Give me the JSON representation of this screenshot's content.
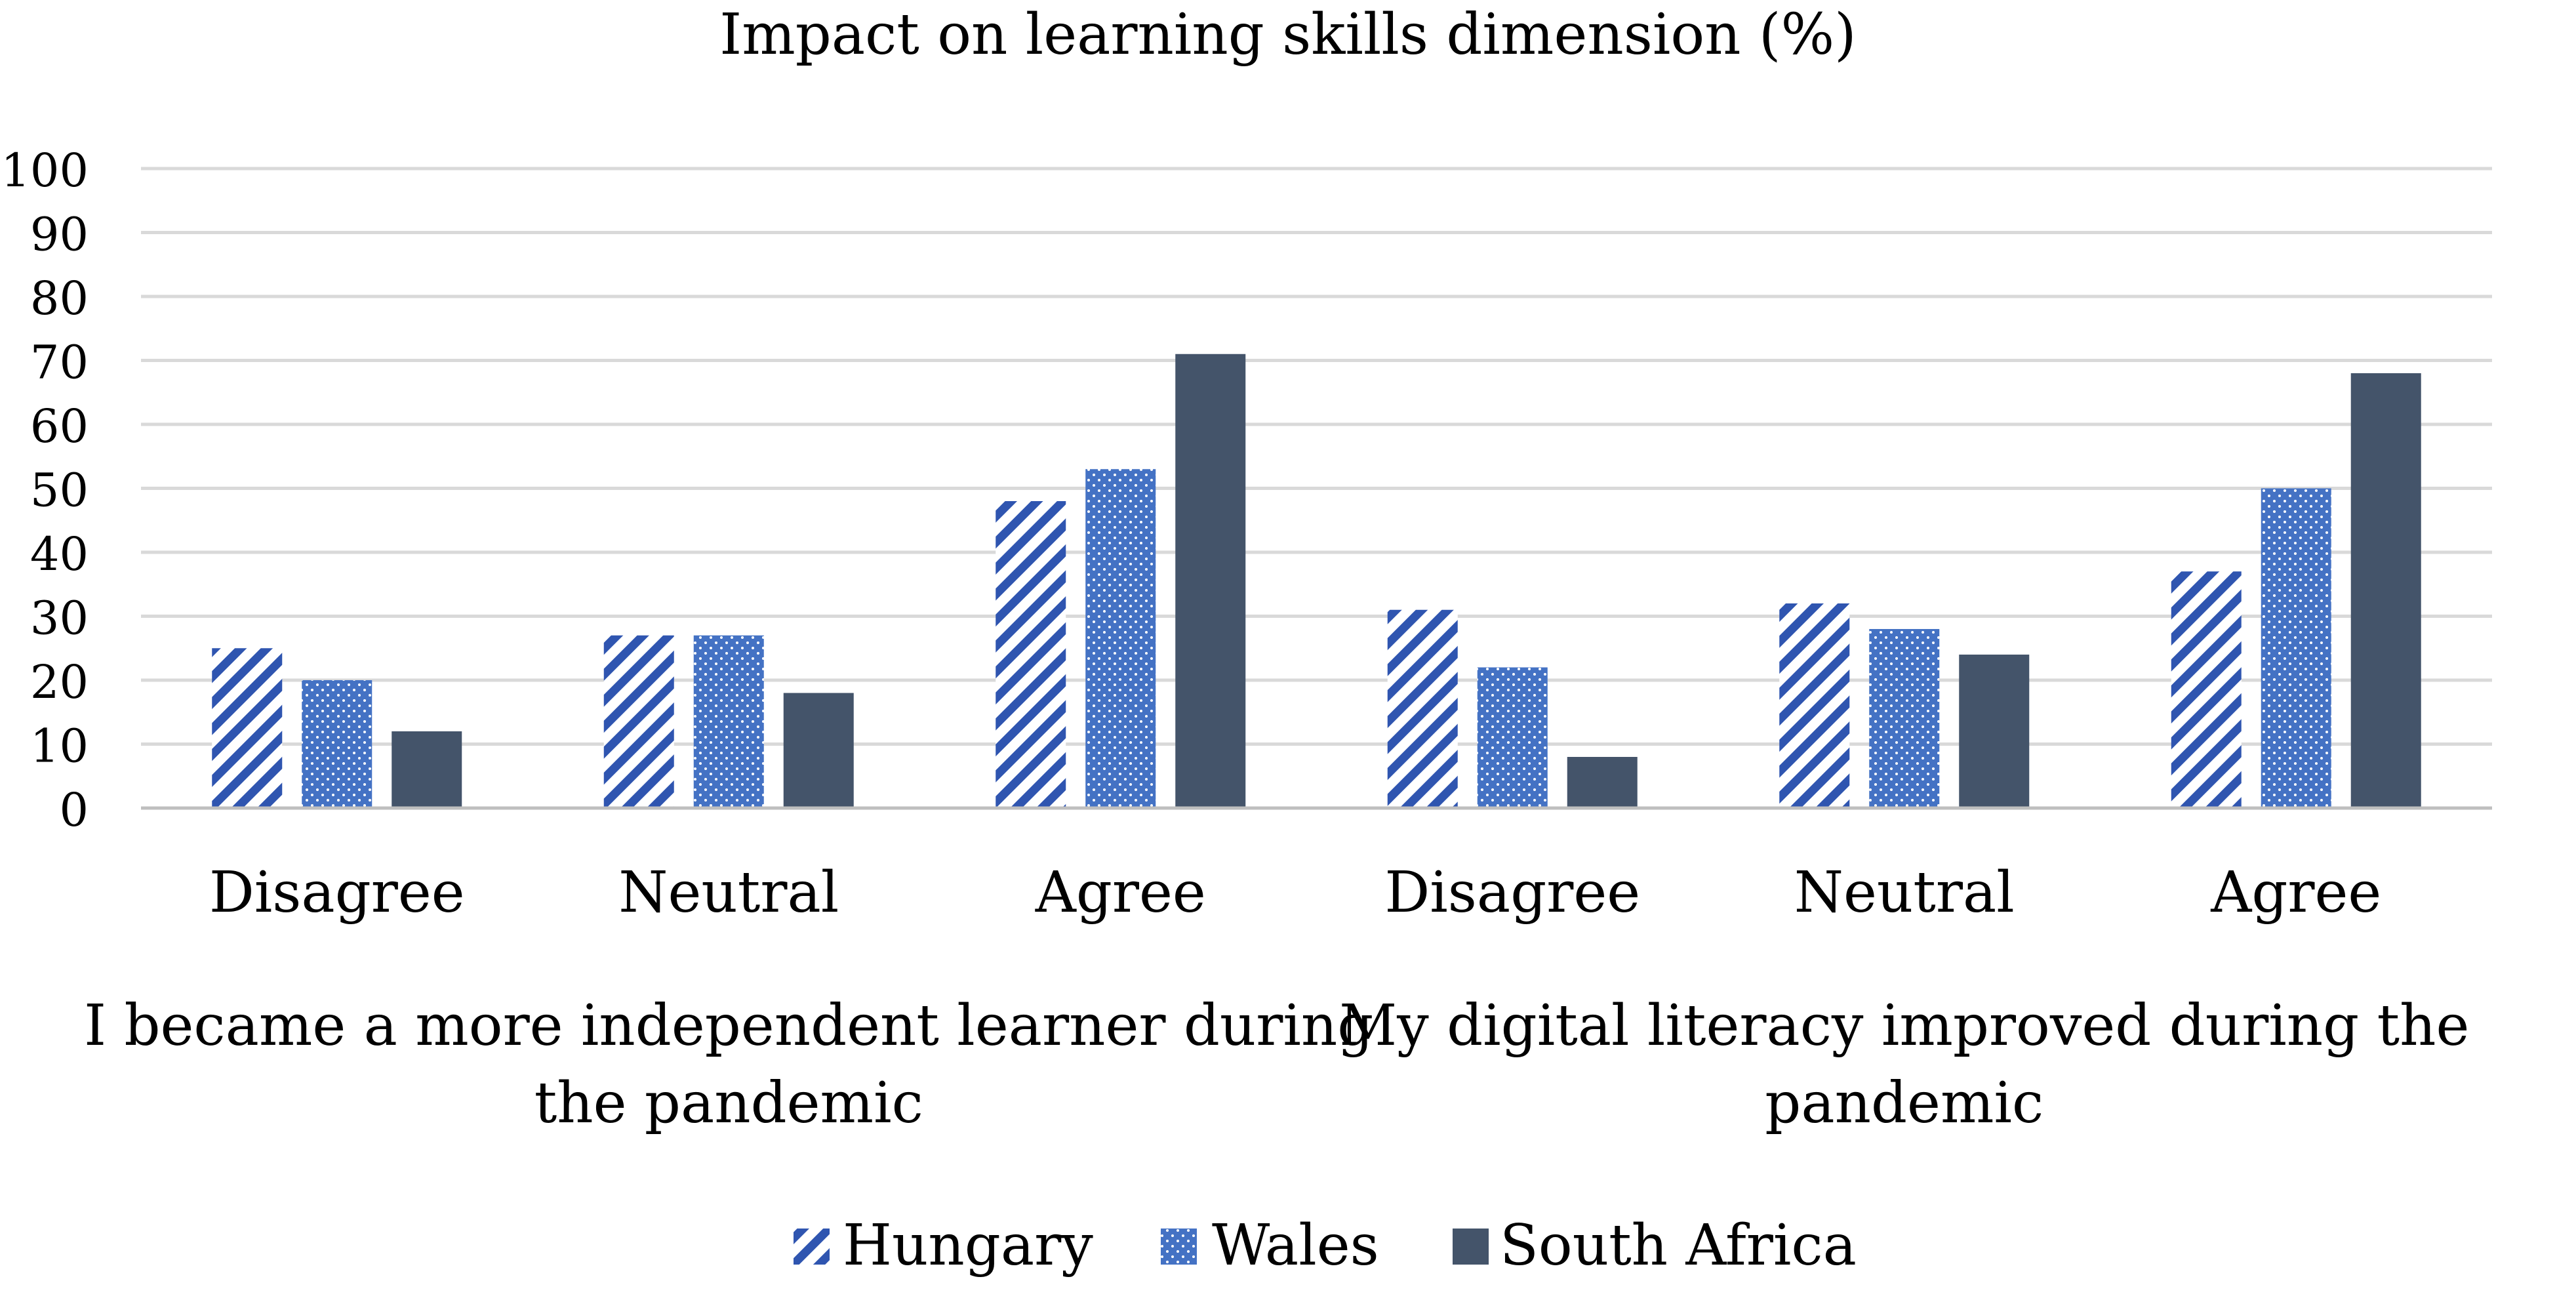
{
  "chart_data": {
    "type": "bar",
    "title": "Impact on learning skills dimension (%)",
    "xlabel": "",
    "ylabel": "",
    "ylim": [
      0,
      100
    ],
    "yticks": [
      0,
      10,
      20,
      30,
      40,
      50,
      60,
      70,
      80,
      90,
      100
    ],
    "grid": true,
    "legend_position": "bottom",
    "categories": [
      "Disagree",
      "Neutral",
      "Agree",
      "Disagree",
      "Neutral",
      "Agree"
    ],
    "groups": [
      {
        "label_lines": [
          "I became a more independent learner during",
          "the pandemic"
        ],
        "category_indices": [
          0,
          1,
          2
        ]
      },
      {
        "label_lines": [
          "My digital literacy improved during the",
          "pandemic"
        ],
        "category_indices": [
          3,
          4,
          5
        ]
      }
    ],
    "series": [
      {
        "name": "Hungary",
        "values": [
          25,
          27,
          48,
          31,
          32,
          37
        ],
        "color": "#2f55b0",
        "pattern": "diagonal-stripes"
      },
      {
        "name": "Wales",
        "values": [
          20,
          27,
          53,
          22,
          28,
          50
        ],
        "color": "#4472c4",
        "pattern": "dots"
      },
      {
        "name": "South Africa",
        "values": [
          12,
          18,
          71,
          8,
          24,
          68
        ],
        "color": "#44546a",
        "pattern": "solid"
      }
    ]
  }
}
